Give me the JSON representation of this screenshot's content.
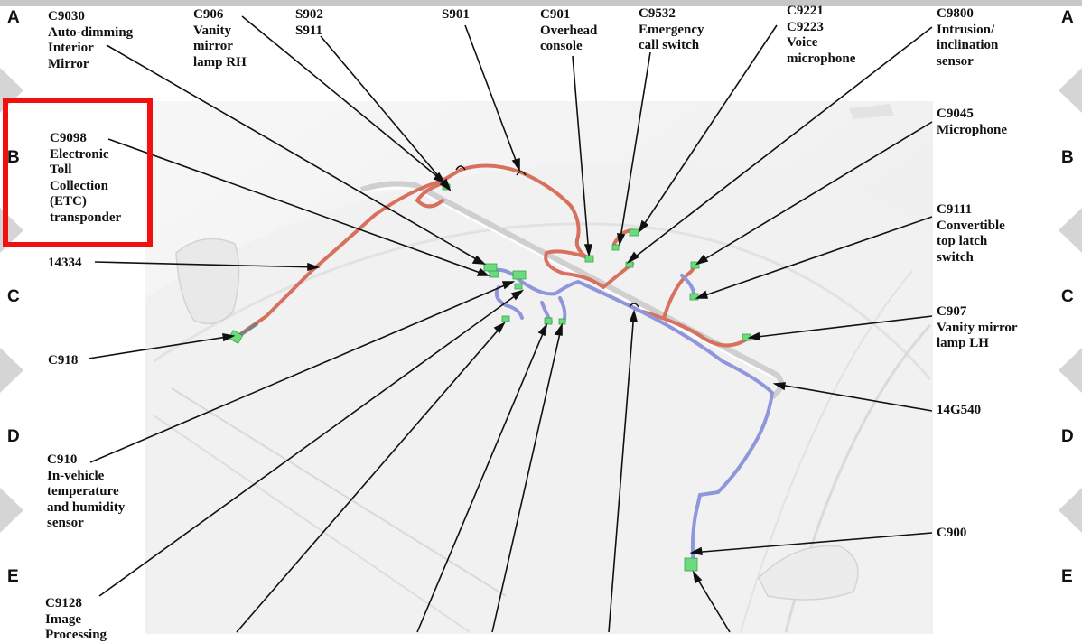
{
  "grid": {
    "rows": [
      "A",
      "B",
      "C",
      "D",
      "E"
    ]
  },
  "labels": {
    "c9030": "C9030\nAuto-dimming\nInterior\nMirror",
    "c906": "C906\nVanity\nmirror\nlamp RH",
    "s902": "S902\nS911",
    "s901": "S901",
    "c901": "C901\nOverhead\nconsole",
    "c9532": "C9532\nEmergency\ncall switch",
    "c9221": "C9221\nC9223\nVoice\nmicrophone",
    "c9800": "C9800\nIntrusion/\ninclination\nsensor",
    "c9098": "C9098\nElectronic\nToll\nCollection\n(ETC)\ntransponder",
    "c9045": "C9045\nMicrophone",
    "c9111": "C9111\nConvertible\ntop latch\nswitch",
    "w14334": "14334",
    "c907": "C907\nVanity mirror\nlamp LH",
    "c918": "C918",
    "w14g540": "14G540",
    "c910": "C910\nIn-vehicle\ntemperature\nand humidity\nsensor",
    "c900": "C900",
    "c9128": "C9128\nImage\nProcessing"
  },
  "colors": {
    "harness_red": "#d8705e",
    "harness_blue": "#8f96dc",
    "connector": "#6bdc7e",
    "highlight": "#f20f0f"
  }
}
